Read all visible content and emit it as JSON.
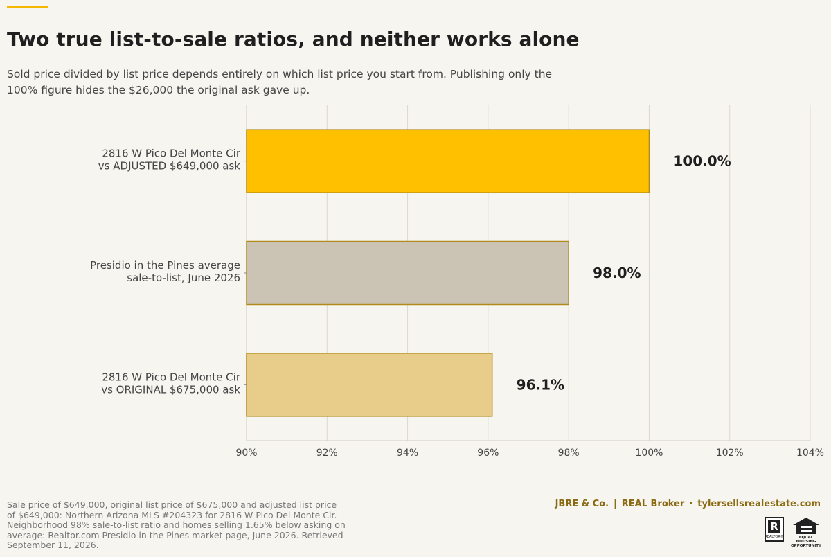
{
  "header": {
    "title": "Two true list-to-sale ratios, and neither works alone",
    "subtitle": "Sold price divided by list price depends entirely on which list price you start from. Publishing only the 100% figure hides the $26,000 the original ask gave up."
  },
  "chart_data": {
    "type": "bar",
    "orientation": "horizontal",
    "categories": [
      [
        "2816 W Pico Del Monte Cir",
        "vs ADJUSTED $649,000 ask"
      ],
      [
        "Presidio in the Pines average",
        "sale-to-list, June 2026"
      ],
      [
        "2816 W Pico Del Monte Cir",
        "vs ORIGINAL $675,000 ask"
      ]
    ],
    "values": [
      100.0,
      98.0,
      96.1
    ],
    "value_labels": [
      "100.0%",
      "98.0%",
      "96.1%"
    ],
    "bar_colors": [
      "#ffc000",
      "#cbc4b4",
      "#e8cd8a"
    ],
    "bar_edge_color": "#b08a1a",
    "xlim": [
      90,
      104
    ],
    "x_ticks": [
      "90%",
      "92%",
      "94%",
      "96%",
      "98%",
      "100%",
      "102%",
      "104%"
    ],
    "x_tick_values": [
      90,
      92,
      94,
      96,
      98,
      100,
      102,
      104
    ],
    "grid": "vertical",
    "xlabel": "",
    "ylabel": ""
  },
  "footer": {
    "source_note": "Sale price of $649,000, original list price of $675,000 and adjusted list price of $649,000: Northern Arizona MLS #204323 for 2816 W Pico Del Monte Cir. Neighborhood 98% sale-to-list ratio and homes selling 1.65% below asking on average: Realtor.com Presidio in the Pines market page, June 2026. Retrieved September 11, 2026.",
    "brand": "JBRE & Co.",
    "separator": "|",
    "broker": "REAL Broker",
    "dot": "·",
    "website": "tylersellsrealestate.com",
    "realtor_logo_letter": "R",
    "realtor_logo_text": "REALTOR®",
    "eho_logo_text": "EQUAL HOUSING OPPORTUNITY"
  },
  "colors": {
    "accent": "#f5b800",
    "background": "#f7f5f0",
    "grid": "#dcd8d0",
    "brand_text": "#8a6a12"
  },
  "icons": [
    "realtor-logo-icon",
    "equal-housing-opportunity-icon"
  ]
}
